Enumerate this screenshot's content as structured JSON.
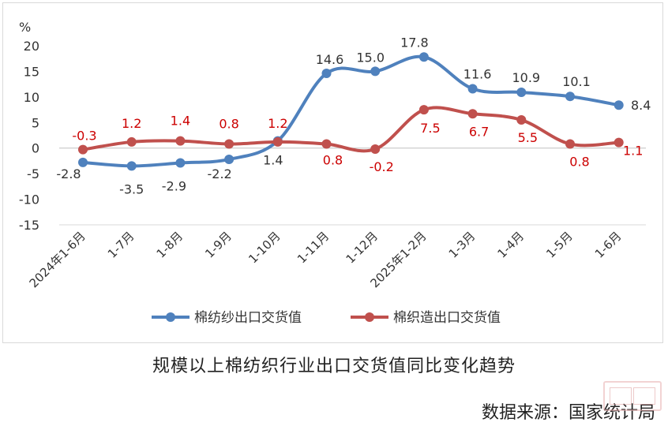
{
  "chart_data": {
    "type": "line",
    "title": "规模以上棉纺织行业出口交货值同比变化趋势",
    "ylabel": "%",
    "ylim": [
      -15,
      20
    ],
    "yticks": [
      20,
      15,
      10,
      5,
      0,
      -5,
      -10,
      -15
    ],
    "categories": [
      "2024年1-6月",
      "1-7月",
      "1-8月",
      "1-9月",
      "1-10月",
      "1-11月",
      "1-12月",
      "2025年1-2月",
      "1-3月",
      "1-4月",
      "1-5月",
      "1-6月"
    ],
    "series": [
      {
        "name": "棉纺纱出口交货值",
        "color": "#4f81bd",
        "values": [
          -2.8,
          -3.5,
          -2.9,
          -2.2,
          1.4,
          14.6,
          15.0,
          17.8,
          11.6,
          10.9,
          10.1,
          8.4
        ],
        "label_color": "#333333"
      },
      {
        "name": "棉织造出口交货值",
        "color": "#c0504d",
        "values": [
          -0.3,
          1.2,
          1.4,
          0.8,
          1.2,
          0.8,
          -0.2,
          7.5,
          6.7,
          5.5,
          0.8,
          1.1
        ],
        "label_color": "#cc0000"
      }
    ],
    "grid": false,
    "legend": "bottom"
  },
  "source": "数据来源：国家统计局"
}
